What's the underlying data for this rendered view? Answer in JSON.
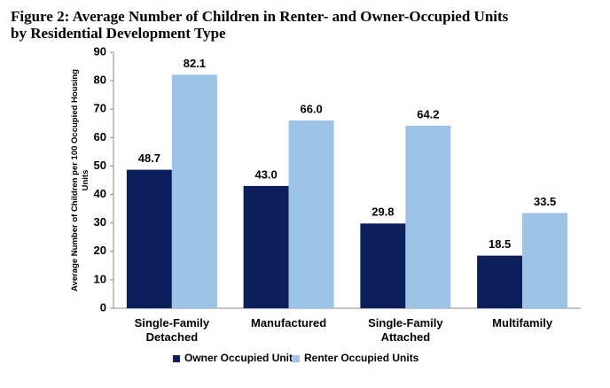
{
  "chart_data": {
    "type": "bar",
    "title": [
      "Figure 2: Average Number of Children in Renter- and Owner-Occupied Units",
      "by Residential Development Type"
    ],
    "y_label": [
      "Average Number of Children per 100 Occupied Housing",
      "Units"
    ],
    "categories": [
      "Single-Family Detached",
      "Manufactured",
      "Single-Family Attached",
      "Multifamily"
    ],
    "series": [
      {
        "name": "Owner Occupied Units",
        "color": "#0c1f5b",
        "values": [
          48.7,
          43.0,
          29.8,
          18.5
        ],
        "value_labels": [
          "48.7",
          "43.0",
          "29.8",
          "18.5"
        ]
      },
      {
        "name": "Renter Occupied Units",
        "color": "#9dc3e6",
        "values": [
          82.1,
          66.0,
          64.2,
          33.5
        ],
        "value_labels": [
          "82.1",
          "66.0",
          "64.2",
          "33.5"
        ]
      }
    ],
    "ylim": [
      0,
      90
    ],
    "yticks": [
      0,
      10,
      20,
      30,
      40,
      50,
      60,
      70,
      80,
      90
    ],
    "grid": false,
    "legend": "bottom"
  }
}
